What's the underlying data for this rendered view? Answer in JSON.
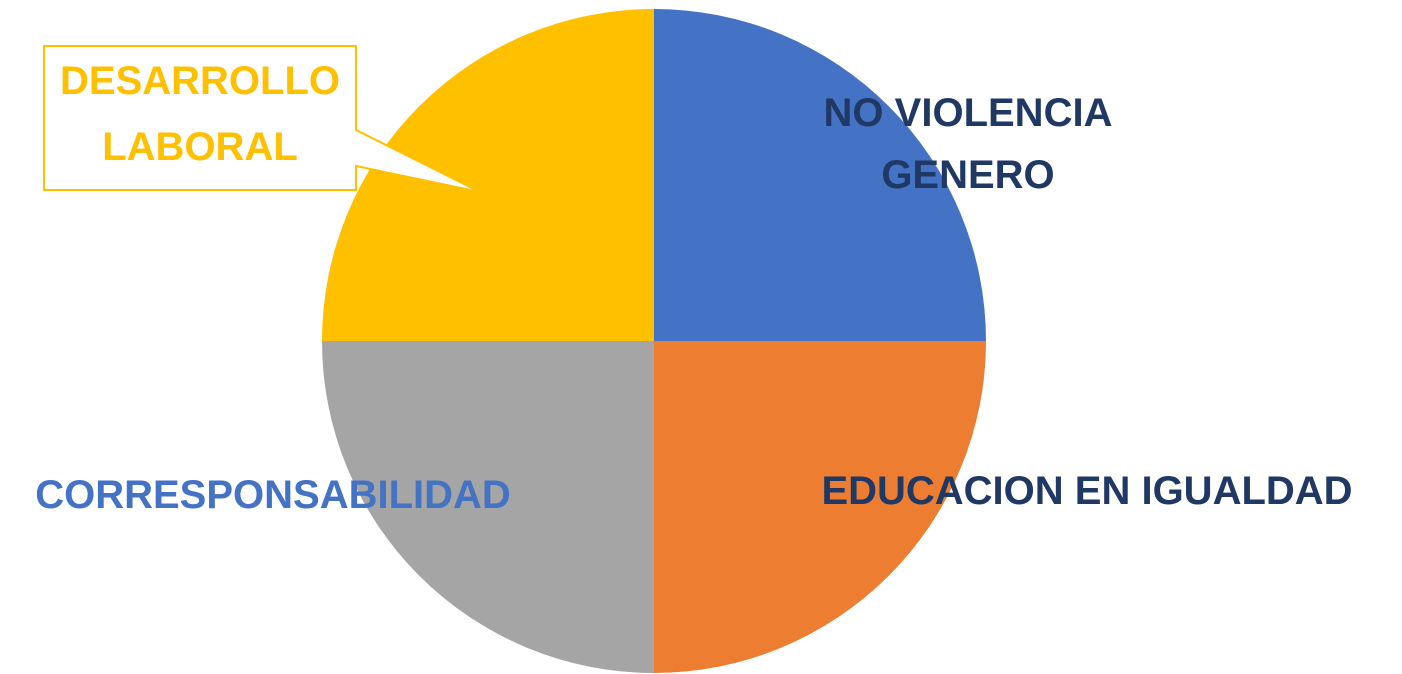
{
  "chart_data": {
    "type": "pie",
    "title": "",
    "start": "12 o'clock",
    "direction": "clockwise",
    "legend": "none",
    "slices": [
      {
        "lines": [
          "NO VIOLENCIA",
          "GENERO"
        ],
        "value": 25,
        "color": "#4472C4",
        "label_color": "#203864"
      },
      {
        "lines": [
          "EDUCACION EN IGUALDAD"
        ],
        "value": 25,
        "color": "#ED7D31",
        "label_color": "#203864"
      },
      {
        "lines": [
          "CORRESPONSABILIDAD"
        ],
        "value": 25,
        "color": "#A5A5A5",
        "label_color": "#4472C4"
      },
      {
        "lines": [
          "DESARROLLO",
          "LABORAL"
        ],
        "value": 25,
        "color": "#FFC000",
        "label_color": "#FFC000",
        "callout": true
      }
    ]
  }
}
